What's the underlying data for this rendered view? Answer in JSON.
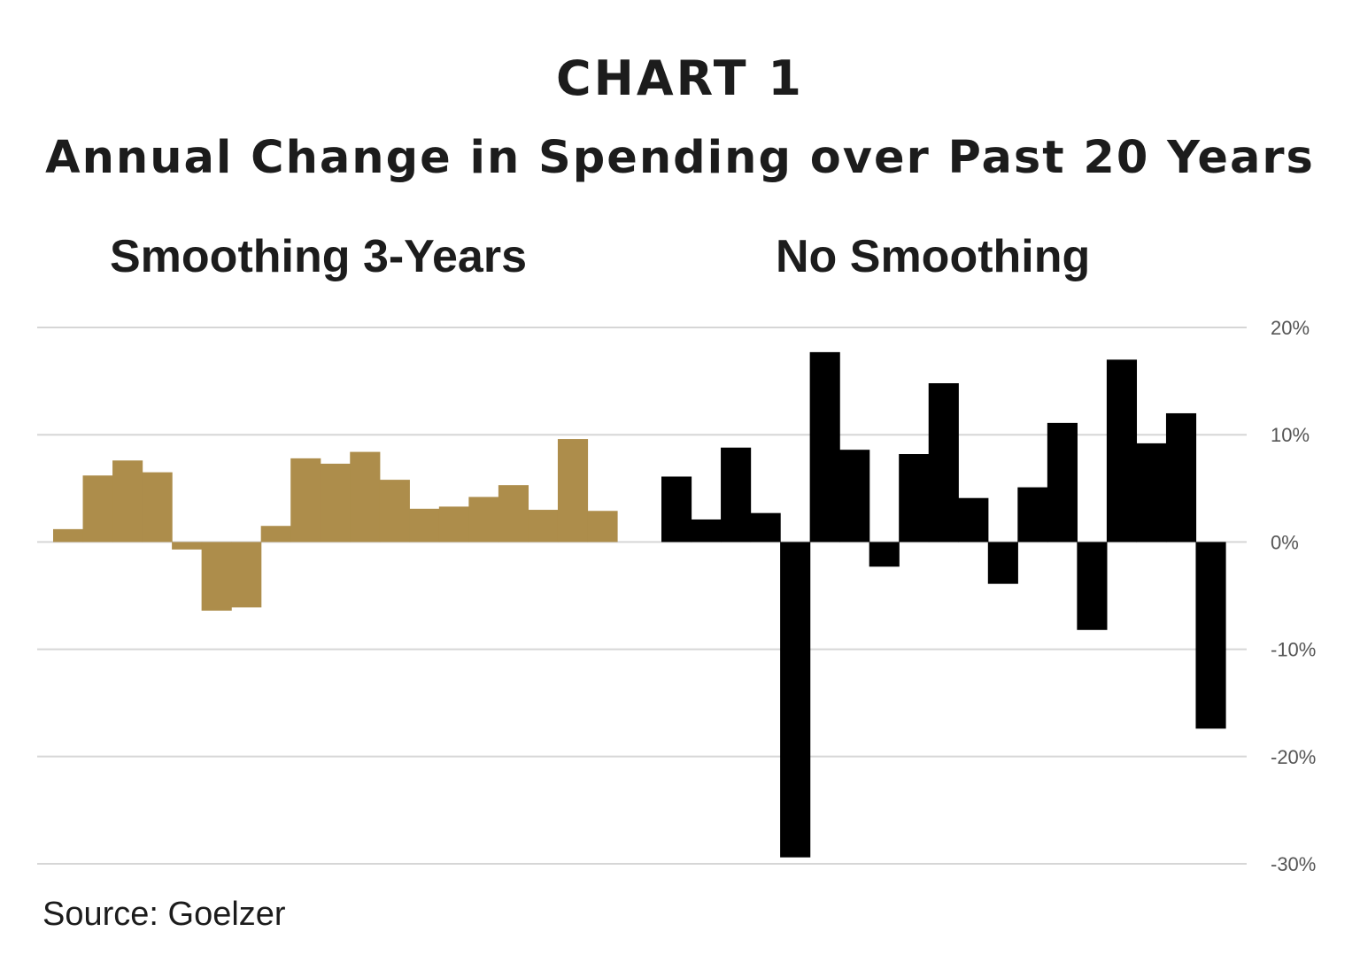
{
  "header": {
    "label": "CHART 1",
    "title": "Annual Change in Spending over Past 20 Years"
  },
  "source": "Source: Goelzer",
  "colors": {
    "smoothed": "#ad8d4b",
    "unsmoothed": "#000000",
    "gridline": "#d6d6d6",
    "tick_text": "#555555"
  },
  "chart_data": [
    {
      "type": "bar",
      "title": "Smoothing 3-Years",
      "unit": "%",
      "ylim": [
        -30,
        20
      ],
      "yticks": [
        20,
        10,
        0,
        -10,
        -20,
        -30
      ],
      "ytick_labels": [
        "20%",
        "10%",
        "0%",
        "-10%",
        "-20%",
        "-30%"
      ],
      "grid": true,
      "series": [
        {
          "values": [
            1.2,
            6.2,
            7.6,
            6.5,
            -0.7,
            -6.4,
            -6.1,
            1.5,
            7.8,
            7.3,
            8.4,
            5.8,
            3.1,
            3.3,
            4.2,
            5.3,
            3.0,
            9.6,
            2.9
          ]
        }
      ]
    },
    {
      "type": "bar",
      "title": "No Smoothing",
      "unit": "%",
      "ylim": [
        -30,
        20
      ],
      "yticks": [
        20,
        10,
        0,
        -10,
        -20,
        -30
      ],
      "ytick_labels": [
        "20%",
        "10%",
        "0%",
        "-10%",
        "-20%",
        "-30%"
      ],
      "grid": true,
      "axis_side": "right",
      "series": [
        {
          "values": [
            6.1,
            2.1,
            8.8,
            2.7,
            -29.4,
            17.7,
            8.6,
            -2.3,
            8.2,
            14.8,
            4.1,
            -3.9,
            5.1,
            11.1,
            -8.2,
            17.0,
            9.2,
            12.0,
            -17.4
          ]
        }
      ]
    }
  ]
}
